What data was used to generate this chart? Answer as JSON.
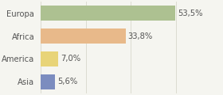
{
  "categories": [
    "Europa",
    "Africa",
    "America",
    "Asia"
  ],
  "values": [
    53.5,
    33.8,
    7.0,
    5.6
  ],
  "labels": [
    "53,5%",
    "33,8%",
    "7,0%",
    "5,6%"
  ],
  "bar_colors": [
    "#adc191",
    "#e8b98a",
    "#e8d478",
    "#7b8cbf"
  ],
  "background_color": "#f5f5f0",
  "xlim": [
    0,
    72
  ],
  "bar_height": 0.65,
  "label_fontsize": 7.2,
  "tick_fontsize": 7.2,
  "grid_color": "#d8d8cc",
  "grid_interval": 18
}
